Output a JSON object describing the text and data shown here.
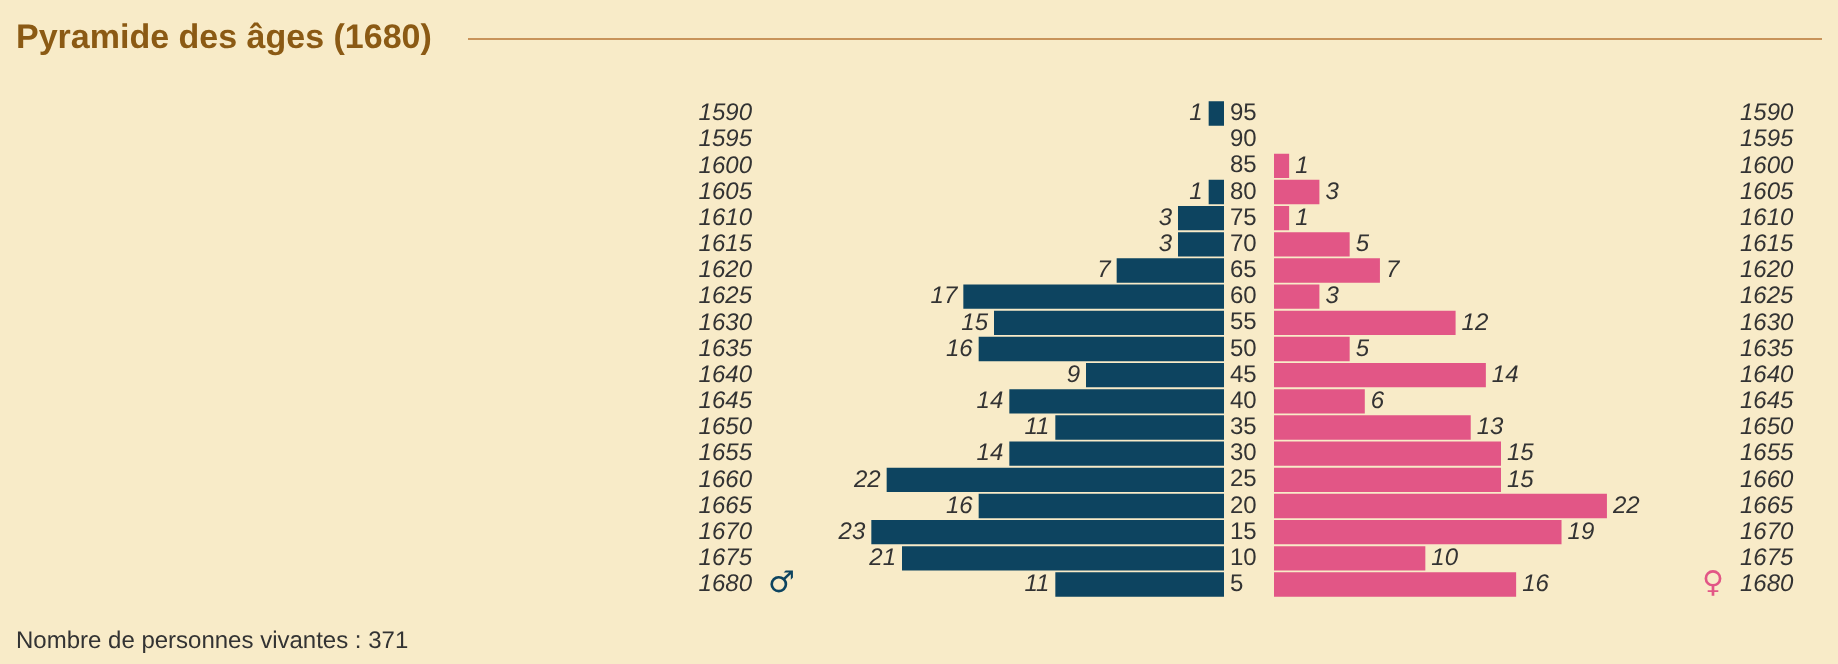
{
  "chart_data": [
    {
      "type": "other",
      "title": "Pyramide des âges (1680)",
      "annotations": [
        "Nombre de personnes vivantes : 371"
      ]
    },
    {
      "type": "bar",
      "orientation": "horizontal",
      "categories": [
        "1590",
        "1595",
        "1600",
        "1605",
        "1610",
        "1615",
        "1620",
        "1625",
        "1630",
        "1635",
        "1640",
        "1645",
        "1650",
        "1655",
        "1660",
        "1665",
        "1670",
        "1675",
        "1680"
      ],
      "y2_categories": [
        "95",
        "90",
        "85",
        "80",
        "75",
        "70",
        "65",
        "60",
        "55",
        "50",
        "45",
        "40",
        "35",
        "30",
        "25",
        "20",
        "15",
        "10",
        "5"
      ],
      "series": [
        {
          "name": "♂",
          "color": "#0d4460",
          "values": [
            1,
            null,
            null,
            1,
            3,
            3,
            7,
            17,
            15,
            16,
            9,
            14,
            11,
            14,
            22,
            16,
            23,
            21,
            11
          ]
        }
      ],
      "tick_labels": "y",
      "data_labels": true
    },
    {
      "type": "bar",
      "orientation": "horizontal",
      "categories": [
        "1590",
        "1595",
        "1600",
        "1605",
        "1610",
        "1615",
        "1620",
        "1625",
        "1630",
        "1635",
        "1640",
        "1645",
        "1650",
        "1655",
        "1660",
        "1665",
        "1670",
        "1675",
        "1680"
      ],
      "series": [
        {
          "name": "♀",
          "color": "#e25686",
          "values": [
            null,
            null,
            1,
            3,
            1,
            5,
            7,
            3,
            12,
            5,
            14,
            6,
            13,
            15,
            15,
            22,
            19,
            10,
            16
          ]
        }
      ],
      "tick_labels": "y",
      "data_labels": true
    }
  ]
}
